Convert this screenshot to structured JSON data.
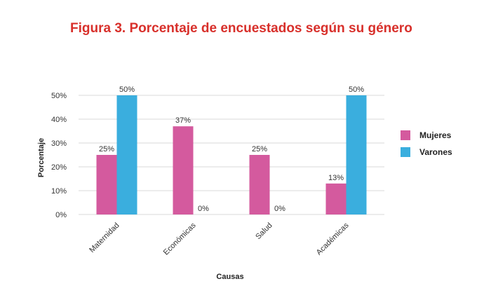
{
  "title": "Figura 3. Porcentaje de encuestados según su género",
  "colors": {
    "Mujeres": "#d45a9e",
    "Varones": "#3aaede",
    "grid": "#d9d9d9"
  },
  "chart_data": {
    "type": "bar",
    "categories": [
      "Maternidad",
      "Económicas",
      "Salud",
      "Académicas"
    ],
    "series": [
      {
        "name": "Mujeres",
        "values": [
          25,
          37,
          25,
          13
        ],
        "labels": [
          "25%",
          "37%",
          "25%",
          "13%"
        ]
      },
      {
        "name": "Varones",
        "values": [
          50,
          0,
          0,
          50
        ],
        "labels": [
          "50%",
          "0%",
          "0%",
          "50%"
        ]
      }
    ],
    "xlabel": "Causas",
    "ylabel": "Porcentaje",
    "ylim": [
      0,
      50
    ],
    "yticks": [
      "0%",
      "10%",
      "20%",
      "30%",
      "40%",
      "50%"
    ],
    "grid": true,
    "legend": "right"
  }
}
